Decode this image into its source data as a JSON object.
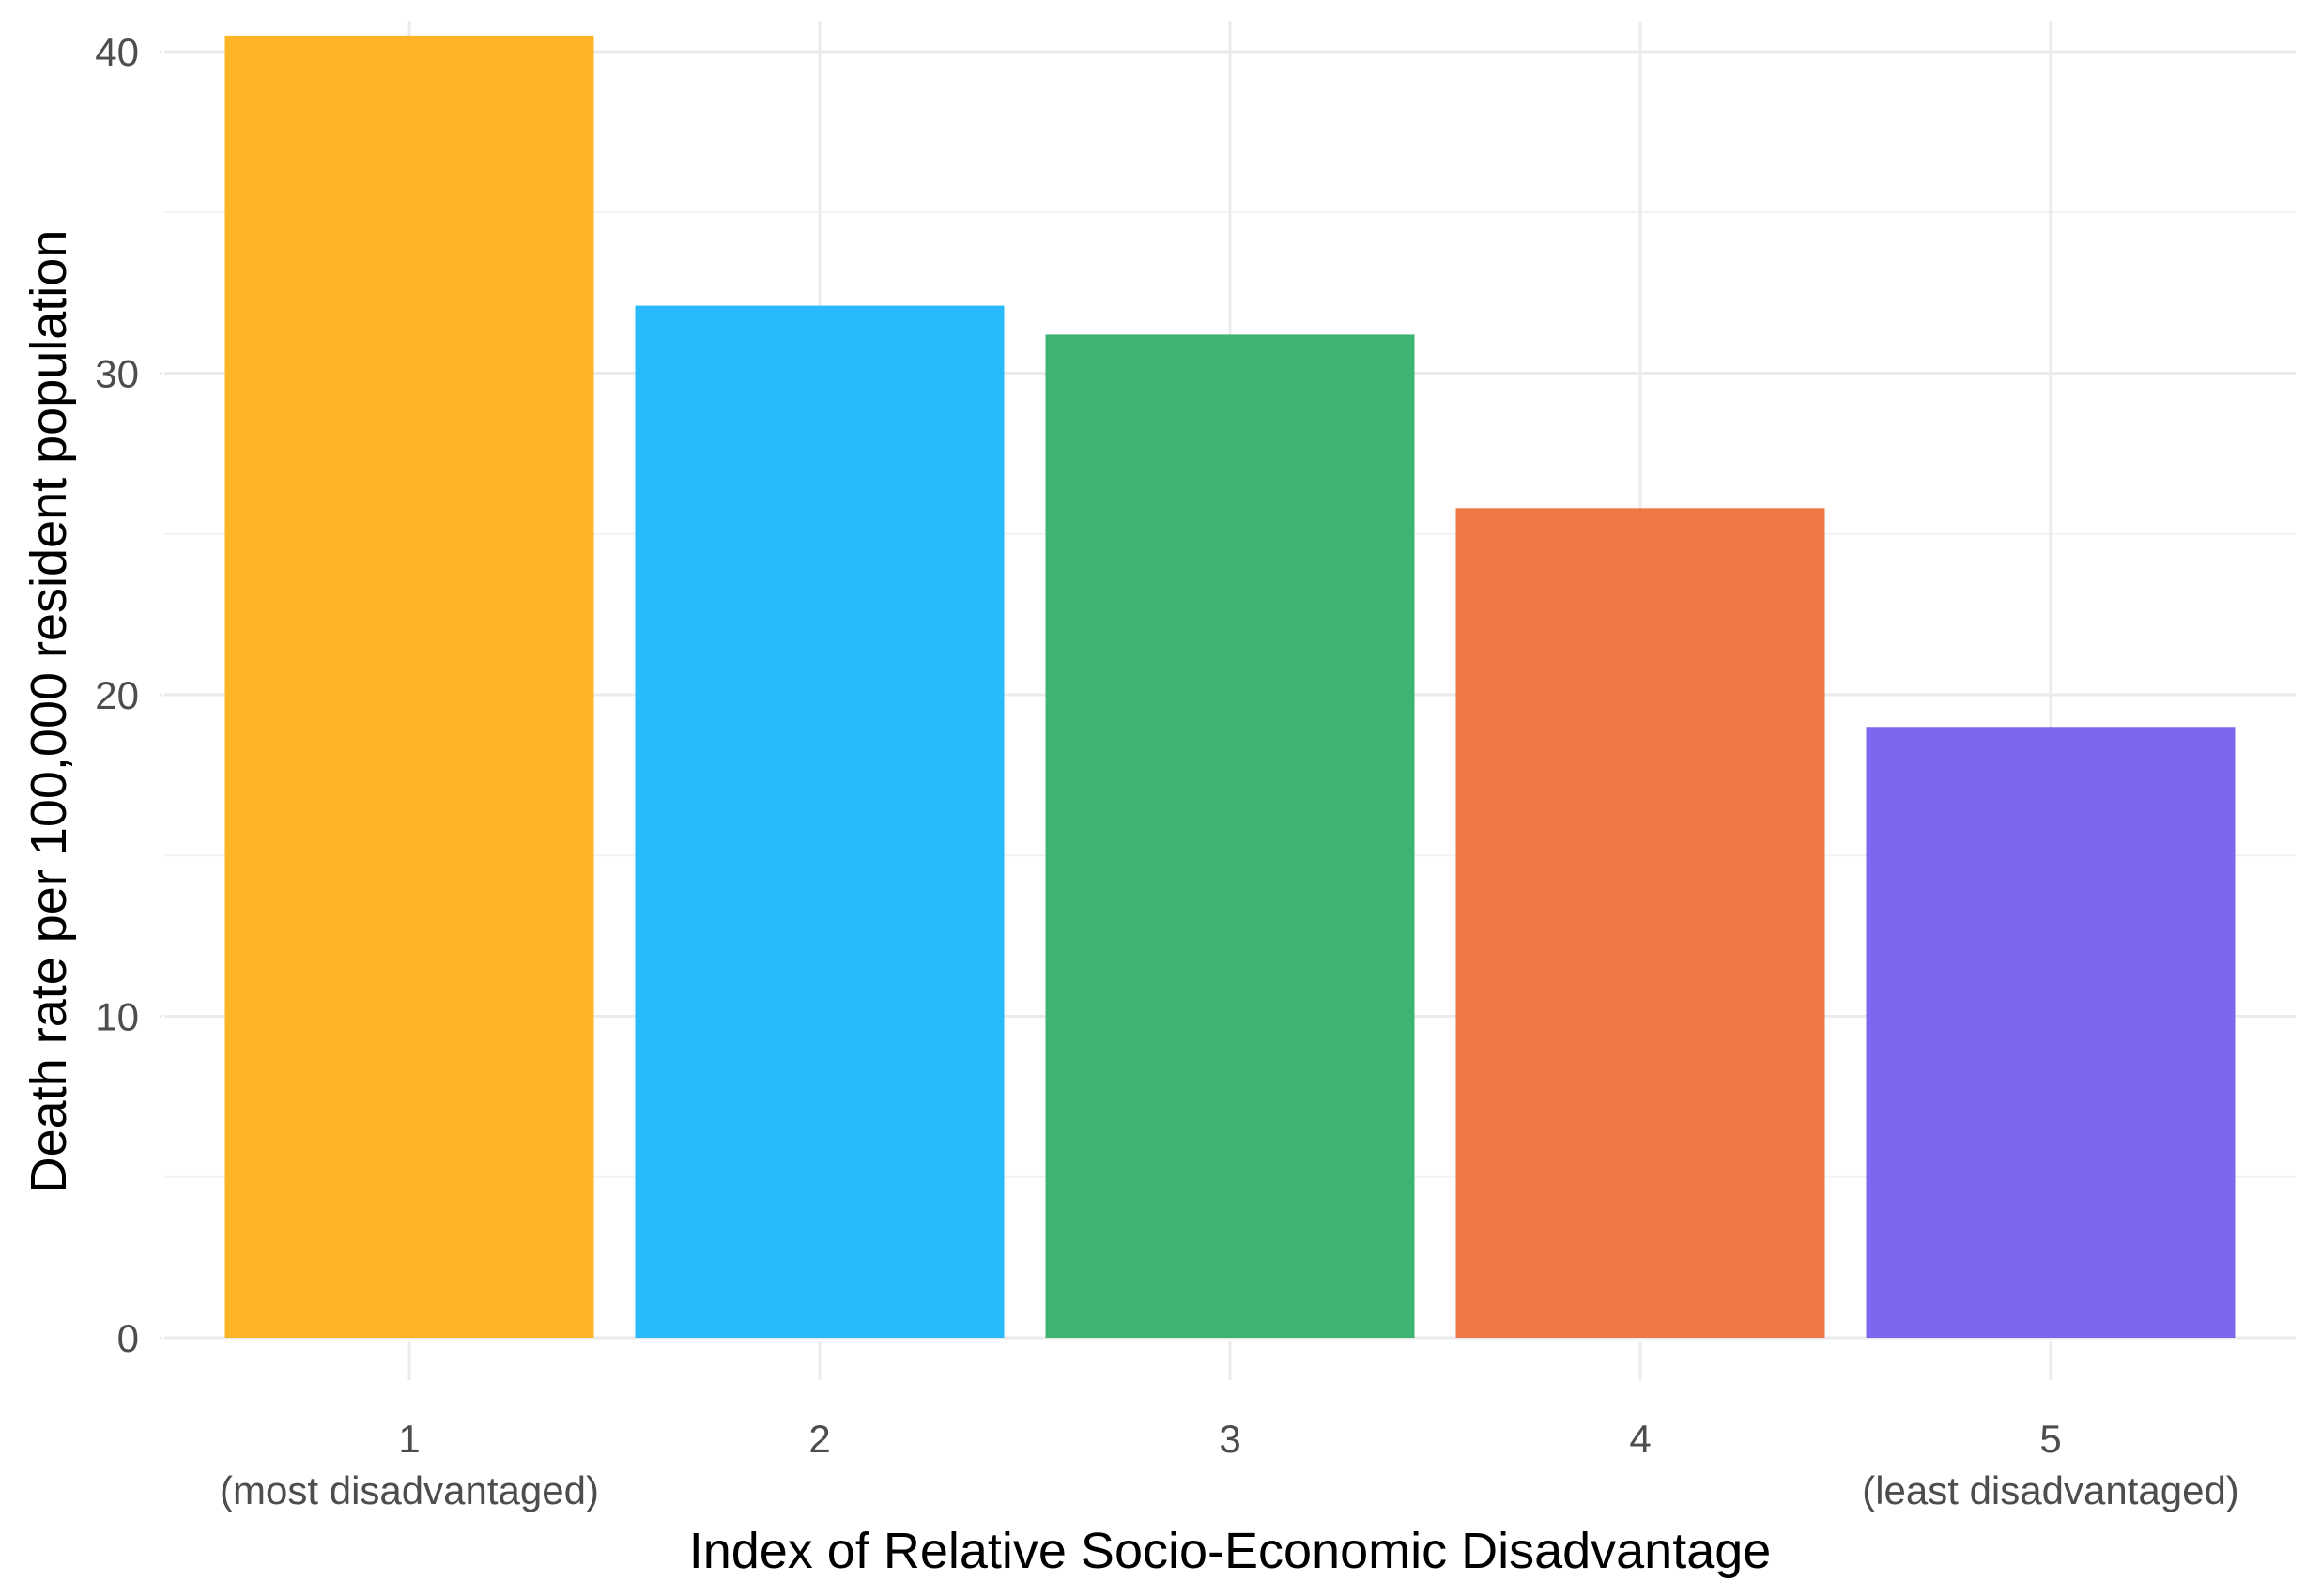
{
  "chart_data": {
    "type": "bar",
    "title": "",
    "xlabel": "Index of Relative Socio-Economic Disadvantage",
    "ylabel": "Death rate per 100,000 resident population",
    "ylim": [
      0,
      40
    ],
    "y_ticks": [
      "0",
      "10",
      "20",
      "30",
      "40"
    ],
    "grid": true,
    "legend": "none",
    "categories": [
      {
        "label": "1",
        "sublabel": "(most disadvantaged)"
      },
      {
        "label": "2",
        "sublabel": ""
      },
      {
        "label": "3",
        "sublabel": ""
      },
      {
        "label": "4",
        "sublabel": ""
      },
      {
        "label": "5",
        "sublabel": "(least disadvantaged)"
      }
    ],
    "values": [
      40.5,
      32.1,
      31.2,
      25.8,
      19.0
    ],
    "colors": [
      "#FDB527",
      "#29BAFE",
      "#3DB472",
      "#ED7845",
      "#7B68EE"
    ]
  }
}
